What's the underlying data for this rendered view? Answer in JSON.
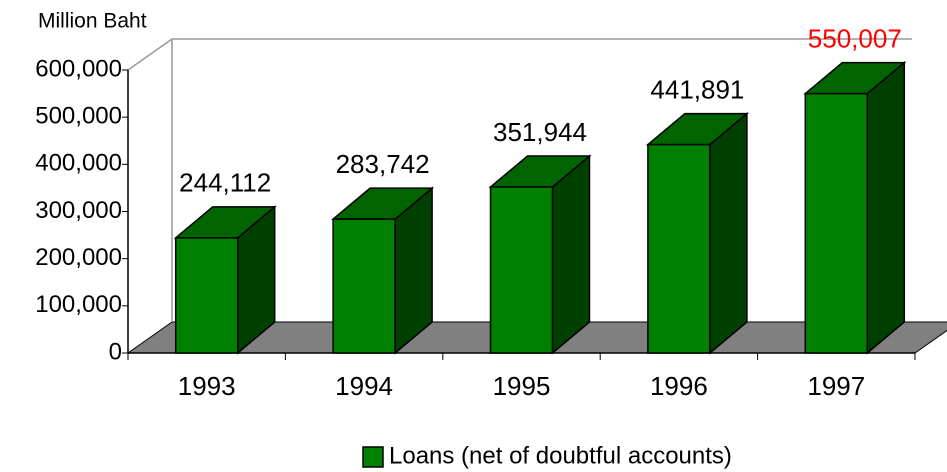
{
  "chart_data": {
    "type": "bar3d",
    "y_axis_label": "Million Baht",
    "categories": [
      "1993",
      "1994",
      "1995",
      "1996",
      "1997"
    ],
    "series": [
      {
        "name": "Loans (net of doubtful accounts)",
        "color": "#008000",
        "values": [
          244112,
          283742,
          351944,
          441891,
          550007
        ],
        "value_labels": [
          "244,112",
          "283,742",
          "351,944",
          "441,891",
          "550,007"
        ],
        "value_label_colors": [
          "#000000",
          "#000000",
          "#000000",
          "#000000",
          "#ff0000"
        ]
      }
    ],
    "ylim": [
      0,
      600000
    ],
    "yticks": [
      0,
      {
        "value": 100000,
        "label": "100,000"
      },
      {
        "value": 200000,
        "label": "200,000"
      },
      {
        "value": 300000,
        "label": "300,000"
      },
      {
        "value": 400000,
        "label": "400,000"
      },
      {
        "value": 500000,
        "label": "500,000"
      },
      {
        "value": 600000,
        "label": "600,000"
      }
    ],
    "grid": false,
    "legend": "bottom",
    "floor_color": "#808080"
  }
}
